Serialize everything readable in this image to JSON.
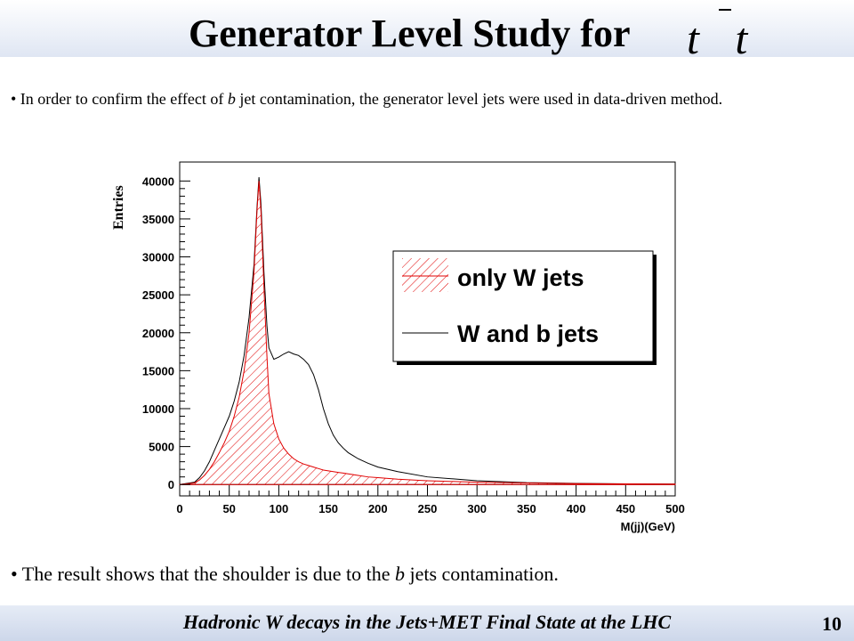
{
  "slide": {
    "title": "Generator Level Study for",
    "title_symbol": "t t",
    "bullet1_prefix": "• In order to confirm the effect of ",
    "bullet1_em": "b",
    "bullet1_suffix": " jet contamination, the generator level jets were used in data-driven method.",
    "bullet2_prefix": "• The result shows that the shoulder is due to the ",
    "bullet2_em": "b",
    "bullet2_suffix": " jets contamination.",
    "footer": "Hadronic W decays in the Jets+MET Final State at the LHC",
    "page_number": "10"
  },
  "chart_data": {
    "type": "area",
    "xlabel": "M(jj)(GeV)",
    "ylabel": "Entries",
    "xlim": [
      0,
      500
    ],
    "ylim": [
      -1500,
      42500
    ],
    "xticks": [
      0,
      50,
      100,
      150,
      200,
      250,
      300,
      350,
      400,
      450,
      500
    ],
    "yticks": [
      0,
      5000,
      10000,
      15000,
      20000,
      25000,
      30000,
      35000,
      40000
    ],
    "grid": false,
    "legend_placement": "top-right",
    "x": [
      0,
      15,
      20,
      25,
      30,
      35,
      40,
      45,
      50,
      55,
      60,
      65,
      70,
      75,
      78,
      80,
      82,
      85,
      88,
      90,
      95,
      100,
      105,
      110,
      115,
      120,
      125,
      130,
      135,
      140,
      145,
      150,
      155,
      160,
      165,
      170,
      175,
      180,
      190,
      200,
      220,
      250,
      300,
      350,
      400,
      450,
      500
    ],
    "series": [
      {
        "name": "only W jets",
        "color": "#e00000",
        "hatched": true,
        "values": [
          0,
          200,
          600,
          1200,
          2000,
          3000,
          4200,
          5500,
          7000,
          9000,
          11500,
          15000,
          20000,
          28000,
          36000,
          40000,
          36000,
          26000,
          17000,
          12000,
          8000,
          6000,
          4800,
          4000,
          3400,
          3000,
          2700,
          2500,
          2300,
          2100,
          1900,
          1800,
          1700,
          1600,
          1500,
          1400,
          1300,
          1200,
          1000,
          900,
          700,
          500,
          300,
          200,
          120,
          80,
          50
        ]
      },
      {
        "name": "W and b jets",
        "color": "#000000",
        "hatched": false,
        "values": [
          0,
          300,
          900,
          1800,
          3000,
          4500,
          6000,
          7500,
          9000,
          11000,
          13500,
          17000,
          22000,
          29000,
          36500,
          40500,
          37000,
          28000,
          21000,
          18000,
          16500,
          16800,
          17200,
          17500,
          17200,
          17000,
          16500,
          15800,
          14500,
          12500,
          10000,
          8000,
          6500,
          5500,
          4800,
          4200,
          3800,
          3400,
          2800,
          2300,
          1700,
          1000,
          500,
          250,
          150,
          80,
          50
        ]
      }
    ]
  }
}
